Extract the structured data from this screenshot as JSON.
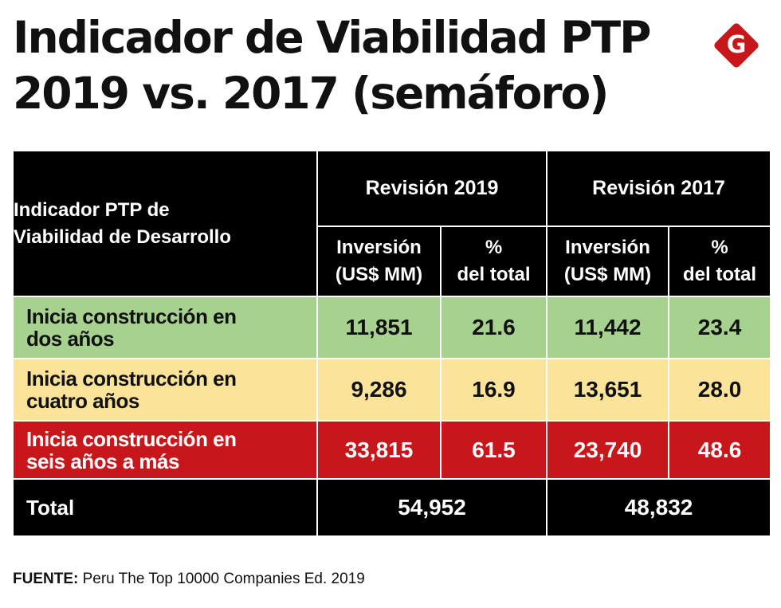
{
  "title": {
    "line1": "Indicador de Viabilidad PTP",
    "line2": "2019 vs. 2017 (semáforo)"
  },
  "logo": {
    "letter": "G",
    "color": "#c8171b"
  },
  "colors": {
    "green": "#a6d18f",
    "yellow": "#fbe39a",
    "red": "#c8171b",
    "black": "#000000"
  },
  "chart_data": {
    "type": "table",
    "title": "Indicador de Viabilidad PTP 2019 vs. 2017 (semáforo)",
    "header": {
      "row_label_line1": "Indicador PTP de",
      "row_label_line2": "Viabilidad de Desarrollo",
      "groups": [
        "Revisión 2019",
        "Revisión 2017"
      ],
      "columns": [
        {
          "line1": "Inversión",
          "line2": "(US$ MM)"
        },
        {
          "line1": "%",
          "line2": "del total"
        },
        {
          "line1": "Inversión",
          "line2": "(US$ MM)"
        },
        {
          "line1": "%",
          "line2": "del total"
        }
      ]
    },
    "rows": [
      {
        "label_line1": "Inicia construcción en",
        "label_line2": "dos años",
        "color": "green",
        "values": [
          "11,851",
          "21.6",
          "11,442",
          "23.4"
        ]
      },
      {
        "label_line1": "Inicia construcción en",
        "label_line2": "cuatro años",
        "color": "yellow",
        "values": [
          "9,286",
          "16.9",
          "13,651",
          "28.0"
        ]
      },
      {
        "label_line1": "Inicia construcción en",
        "label_line2": "seis años a más",
        "color": "red",
        "values": [
          "33,815",
          "61.5",
          "23,740",
          "48.6"
        ]
      }
    ],
    "total": {
      "label": "Total",
      "values": [
        "54,952",
        "48,832"
      ]
    }
  },
  "source": {
    "label": "FUENTE:",
    "text": " Peru The Top 10000 Companies Ed. 2019"
  }
}
